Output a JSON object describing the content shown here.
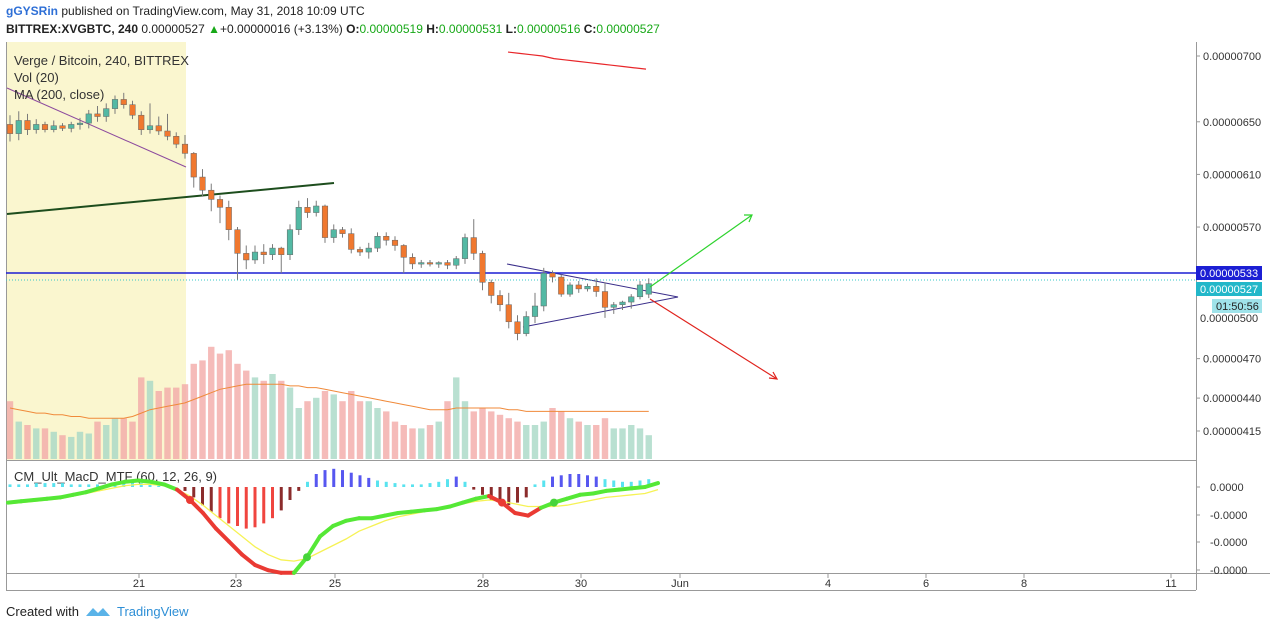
{
  "header": {
    "publisher_user": "gGYSRin",
    "publisher_text": " published on TradingView.com, May 31, 2018 10:09 UTC",
    "symbol": "BITTREX:XVGBTC, 240",
    "last": "0.00000527",
    "arrow": "▲",
    "change": "+0.00000016 (+3.13%)",
    "o_label": "O:",
    "o_value": "0.00000519",
    "h_label": "H:",
    "h_value": "0.00000531",
    "l_label": "L:",
    "l_value": "0.00000516",
    "c_label": "C:",
    "c_value": "0.00000527"
  },
  "legend": {
    "title": "Verge / Bitcoin, 240, BITTREX",
    "vol": "Vol (20)",
    "ma": "MA (200, close)",
    "macd": "CM_Ult_MacD_MTF (60, 12, 26, 9)"
  },
  "price_axis": {
    "ticks": [
      "0.00000700",
      "0.00000650",
      "0.00000610",
      "0.00000570",
      "0.00000470",
      "0.00000440",
      "0.00000415"
    ],
    "tick_values": [
      700,
      650,
      610,
      570,
      470,
      440,
      415
    ],
    "hidden_tick": "0.00000500",
    "hline_label": "0.00000533",
    "last_label": "0.00000527",
    "countdown": "01:50:56"
  },
  "macd_axis": {
    "ticks": [
      "0.0000",
      "-0.0000",
      "-0.0000",
      "-0.0000"
    ]
  },
  "time_axis": {
    "ticks": [
      "21",
      "23",
      "25",
      "28",
      "30",
      "Jun",
      "4",
      "6",
      "8",
      "11"
    ]
  },
  "footer": {
    "created_with": "Created with",
    "brand": "TradingView"
  },
  "colors": {
    "up": "#53b9a4",
    "down": "#f0782f",
    "hline": "#1c1fd4",
    "ma": "#e8262a",
    "trend_dark": "#1d4d1d",
    "trend_purple": "#8c4a9e",
    "triangle": "#3a2e8a",
    "arrow_up": "#2ed32e",
    "arrow_down": "#e0231d",
    "highlight": "#faf6cf"
  },
  "chart_data": {
    "type": "candlestick",
    "price_units": "satoshi",
    "ylim": [
      400,
      712
    ],
    "hline": 533,
    "candles": [
      {
        "o": 648,
        "h": 655,
        "l": 635,
        "c": 641
      },
      {
        "o": 641,
        "h": 658,
        "l": 636,
        "c": 651
      },
      {
        "o": 651,
        "h": 656,
        "l": 640,
        "c": 644
      },
      {
        "o": 644,
        "h": 652,
        "l": 641,
        "c": 648
      },
      {
        "o": 648,
        "h": 650,
        "l": 642,
        "c": 644
      },
      {
        "o": 644,
        "h": 651,
        "l": 642,
        "c": 647
      },
      {
        "o": 647,
        "h": 649,
        "l": 643,
        "c": 645
      },
      {
        "o": 645,
        "h": 650,
        "l": 642,
        "c": 648
      },
      {
        "o": 648,
        "h": 653,
        "l": 644,
        "c": 649
      },
      {
        "o": 649,
        "h": 659,
        "l": 645,
        "c": 656
      },
      {
        "o": 656,
        "h": 662,
        "l": 650,
        "c": 654
      },
      {
        "o": 654,
        "h": 664,
        "l": 650,
        "c": 660
      },
      {
        "o": 660,
        "h": 670,
        "l": 656,
        "c": 667
      },
      {
        "o": 667,
        "h": 672,
        "l": 660,
        "c": 663
      },
      {
        "o": 663,
        "h": 666,
        "l": 652,
        "c": 655
      },
      {
        "o": 655,
        "h": 658,
        "l": 640,
        "c": 644
      },
      {
        "o": 644,
        "h": 664,
        "l": 641,
        "c": 647
      },
      {
        "o": 647,
        "h": 654,
        "l": 640,
        "c": 643
      },
      {
        "o": 643,
        "h": 656,
        "l": 636,
        "c": 639
      },
      {
        "o": 639,
        "h": 642,
        "l": 630,
        "c": 633
      },
      {
        "o": 633,
        "h": 640,
        "l": 622,
        "c": 626
      },
      {
        "o": 626,
        "h": 627,
        "l": 600,
        "c": 608
      },
      {
        "o": 608,
        "h": 614,
        "l": 593,
        "c": 598
      },
      {
        "o": 598,
        "h": 603,
        "l": 582,
        "c": 591
      },
      {
        "o": 591,
        "h": 594,
        "l": 573,
        "c": 585
      },
      {
        "o": 585,
        "h": 590,
        "l": 560,
        "c": 568
      },
      {
        "o": 568,
        "h": 570,
        "l": 530,
        "c": 550
      },
      {
        "o": 550,
        "h": 556,
        "l": 538,
        "c": 545
      },
      {
        "o": 545,
        "h": 556,
        "l": 542,
        "c": 551
      },
      {
        "o": 551,
        "h": 557,
        "l": 542,
        "c": 549
      },
      {
        "o": 549,
        "h": 557,
        "l": 545,
        "c": 554
      },
      {
        "o": 554,
        "h": 555,
        "l": 535,
        "c": 549
      },
      {
        "o": 549,
        "h": 572,
        "l": 545,
        "c": 568
      },
      {
        "o": 568,
        "h": 590,
        "l": 564,
        "c": 585
      },
      {
        "o": 585,
        "h": 592,
        "l": 577,
        "c": 581
      },
      {
        "o": 581,
        "h": 590,
        "l": 578,
        "c": 586
      },
      {
        "o": 586,
        "h": 587,
        "l": 558,
        "c": 562
      },
      {
        "o": 562,
        "h": 572,
        "l": 558,
        "c": 568
      },
      {
        "o": 568,
        "h": 570,
        "l": 562,
        "c": 565
      },
      {
        "o": 565,
        "h": 569,
        "l": 550,
        "c": 553
      },
      {
        "o": 553,
        "h": 555,
        "l": 548,
        "c": 551
      },
      {
        "o": 551,
        "h": 558,
        "l": 546,
        "c": 554
      },
      {
        "o": 554,
        "h": 566,
        "l": 551,
        "c": 563
      },
      {
        "o": 563,
        "h": 566,
        "l": 556,
        "c": 560
      },
      {
        "o": 560,
        "h": 563,
        "l": 552,
        "c": 556
      },
      {
        "o": 556,
        "h": 557,
        "l": 535,
        "c": 547
      },
      {
        "o": 547,
        "h": 550,
        "l": 538,
        "c": 542
      },
      {
        "o": 542,
        "h": 545,
        "l": 539,
        "c": 543
      },
      {
        "o": 543,
        "h": 545,
        "l": 540,
        "c": 542
      },
      {
        "o": 542,
        "h": 544,
        "l": 539,
        "c": 543
      },
      {
        "o": 543,
        "h": 545,
        "l": 538,
        "c": 541
      },
      {
        "o": 541,
        "h": 548,
        "l": 538,
        "c": 546
      },
      {
        "o": 546,
        "h": 565,
        "l": 542,
        "c": 562
      },
      {
        "o": 562,
        "h": 576,
        "l": 545,
        "c": 550
      },
      {
        "o": 550,
        "h": 552,
        "l": 522,
        "c": 528
      },
      {
        "o": 528,
        "h": 530,
        "l": 512,
        "c": 518
      },
      {
        "o": 518,
        "h": 522,
        "l": 506,
        "c": 511
      },
      {
        "o": 511,
        "h": 520,
        "l": 493,
        "c": 498
      },
      {
        "o": 498,
        "h": 503,
        "l": 484,
        "c": 489
      },
      {
        "o": 489,
        "h": 506,
        "l": 487,
        "c": 502
      },
      {
        "o": 502,
        "h": 520,
        "l": 497,
        "c": 510
      },
      {
        "o": 510,
        "h": 539,
        "l": 506,
        "c": 535
      },
      {
        "o": 535,
        "h": 537,
        "l": 528,
        "c": 532
      },
      {
        "o": 532,
        "h": 534,
        "l": 517,
        "c": 519
      },
      {
        "o": 519,
        "h": 528,
        "l": 517,
        "c": 526
      },
      {
        "o": 526,
        "h": 529,
        "l": 520,
        "c": 523
      },
      {
        "o": 523,
        "h": 527,
        "l": 521,
        "c": 525
      },
      {
        "o": 525,
        "h": 531,
        "l": 517,
        "c": 521
      },
      {
        "o": 521,
        "h": 528,
        "l": 501,
        "c": 509
      },
      {
        "o": 509,
        "h": 513,
        "l": 504,
        "c": 511
      },
      {
        "o": 511,
        "h": 514,
        "l": 507,
        "c": 513
      },
      {
        "o": 513,
        "h": 519,
        "l": 508,
        "c": 517
      },
      {
        "o": 517,
        "h": 529,
        "l": 515,
        "c": 526
      },
      {
        "o": 519,
        "h": 531,
        "l": 516,
        "c": 527
      }
    ],
    "volume": [
      34,
      22,
      20,
      18,
      18,
      16,
      14,
      13,
      16,
      15,
      22,
      20,
      24,
      24,
      22,
      48,
      46,
      40,
      42,
      42,
      44,
      56,
      58,
      66,
      62,
      64,
      56,
      52,
      48,
      46,
      50,
      46,
      42,
      30,
      34,
      36,
      40,
      38,
      34,
      40,
      34,
      34,
      30,
      28,
      22,
      20,
      18,
      18,
      20,
      22,
      34,
      48,
      34,
      28,
      30,
      28,
      26,
      24,
      22,
      20,
      20,
      22,
      30,
      28,
      24,
      22,
      20,
      20,
      24,
      18,
      18,
      20,
      18,
      14
    ],
    "volume_ma": [
      30,
      29,
      28,
      27,
      27,
      26,
      26,
      25,
      25,
      24,
      24,
      24,
      24,
      24,
      25,
      27,
      29,
      30,
      31,
      32,
      33,
      35,
      37,
      39,
      41,
      42,
      43,
      44,
      44,
      44,
      44,
      44,
      43,
      43,
      42,
      42,
      41,
      40,
      39,
      38,
      37,
      36,
      35,
      34,
      33,
      32,
      31,
      30,
      29,
      29,
      29,
      30,
      30,
      30,
      30,
      30,
      30,
      29,
      29,
      28,
      28,
      28,
      28,
      28,
      28,
      28,
      28,
      28,
      28,
      28,
      28,
      28,
      28,
      28
    ],
    "ma200": [
      703,
      702,
      701,
      700,
      698,
      697,
      696,
      695,
      694,
      693,
      692,
      691,
      690
    ],
    "macd_hist": [
      0.2,
      0.2,
      0.2,
      0.3,
      0.3,
      0.3,
      0.3,
      0.2,
      0.2,
      0.2,
      0.2,
      0.2,
      0.3,
      0.4,
      0.4,
      0.3,
      0.2,
      0.1,
      0.1,
      0.0,
      -0.3,
      -0.8,
      -1.4,
      -1.9,
      -2.4,
      -2.8,
      -3.0,
      -3.2,
      -3.1,
      -2.8,
      -2.4,
      -1.8,
      -1.0,
      -0.3,
      0.4,
      1.0,
      1.3,
      1.4,
      1.3,
      1.1,
      0.9,
      0.7,
      0.5,
      0.4,
      0.3,
      0.2,
      0.2,
      0.2,
      0.3,
      0.4,
      0.6,
      0.8,
      0.4,
      -0.2,
      -0.6,
      -1.0,
      -1.3,
      -1.4,
      -1.2,
      -0.8,
      0.2,
      0.5,
      0.8,
      0.9,
      1.0,
      1.0,
      0.9,
      0.8,
      0.6,
      0.5,
      0.4,
      0.4,
      0.5,
      0.6
    ],
    "macd_line": [
      -1.2,
      -1.1,
      -1.0,
      -0.9,
      -0.8,
      -0.6,
      -0.4,
      -0.1,
      0.2,
      0.4,
      0.5,
      0.4,
      0.2,
      -0.2,
      -1.0,
      -2.0,
      -3.2,
      -4.2,
      -5.2,
      -6.0,
      -6.4,
      -6.6,
      -6.6,
      -5.4,
      -3.8,
      -3.0,
      -2.6,
      -2.4,
      -2.4,
      -2.2,
      -2.0,
      -1.9,
      -1.8,
      -1.7,
      -1.5,
      -1.2,
      -0.9,
      -0.7,
      -1.2,
      -2.0,
      -2.2,
      -1.6,
      -1.2,
      -0.9,
      -0.6,
      -0.5,
      -0.3,
      -0.2,
      -0.1,
      0.0,
      0.3
    ],
    "signal_line": [
      -1.3,
      -1.2,
      -1.1,
      -1.0,
      -0.9,
      -0.7,
      -0.5,
      -0.3,
      -0.1,
      0.1,
      0.2,
      0.2,
      0.1,
      -0.2,
      -0.7,
      -1.4,
      -2.2,
      -3.0,
      -3.8,
      -4.6,
      -5.2,
      -5.6,
      -5.7,
      -5.5,
      -5.0,
      -4.5,
      -4.0,
      -3.4,
      -3.0,
      -2.6,
      -2.3,
      -2.1,
      -1.9,
      -1.7,
      -1.5,
      -1.3,
      -1.1,
      -1.0,
      -1.1,
      -1.3,
      -1.5,
      -1.5,
      -1.5,
      -1.4,
      -1.2,
      -1.0,
      -0.8,
      -0.7,
      -0.6,
      -0.5,
      -0.2
    ]
  }
}
